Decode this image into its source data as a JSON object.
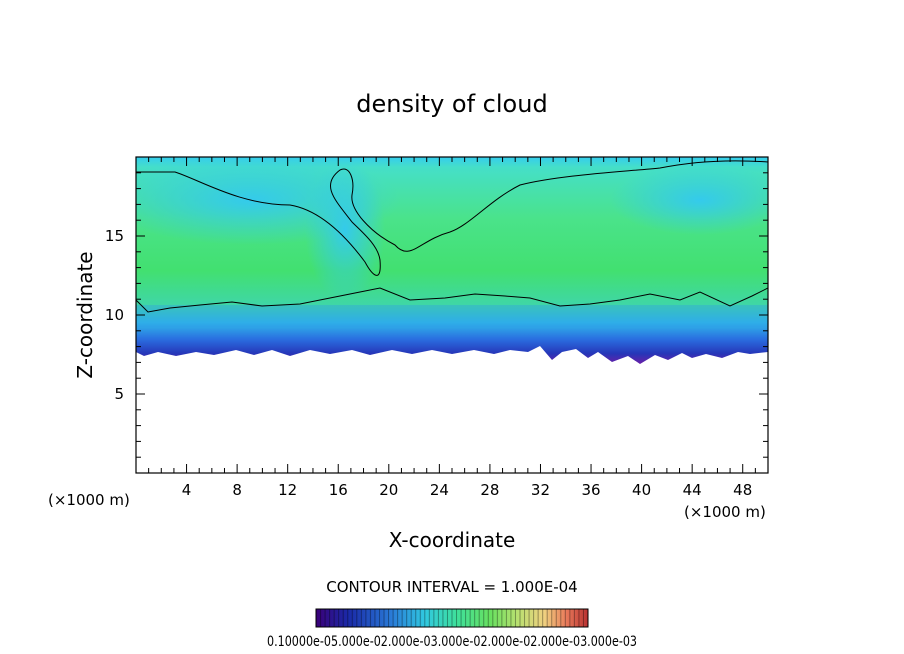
{
  "chart_data": {
    "type": "heatmap",
    "title": "density of cloud",
    "xlabel": "X-coordinate",
    "ylabel": "Z-coordinate",
    "x_unit_left": "(×1000 m)",
    "x_unit_right": "(×1000 m)",
    "xlim": [
      0,
      50
    ],
    "ylim": [
      0,
      20
    ],
    "xticks": [
      4,
      8,
      12,
      16,
      20,
      24,
      28,
      32,
      36,
      40,
      44,
      48
    ],
    "yticks": [
      5,
      10,
      15
    ],
    "contour_interval_text": "CONTOUR INTERVAL = 1.000E-04",
    "colorbar_labels_text": "0.10000e-05.000e-02.000e-03.000e-02.000e-02.000e-03.000e-03",
    "colorbar_colors": [
      "#3a0078",
      "#1a2aa8",
      "#2a7cd8",
      "#30c8e0",
      "#3fe09a",
      "#68e060",
      "#b8e070",
      "#f0d080",
      "#e87a5a",
      "#b83030"
    ],
    "colors": {
      "low": "#5a1fa8",
      "mid_blue": "#2a6ee0",
      "cyan": "#35d0ee",
      "green": "#48e278",
      "bright_green": "#36dc5e"
    },
    "cloud_base_z": 7.6,
    "cloud_top_z": 19.5
  }
}
